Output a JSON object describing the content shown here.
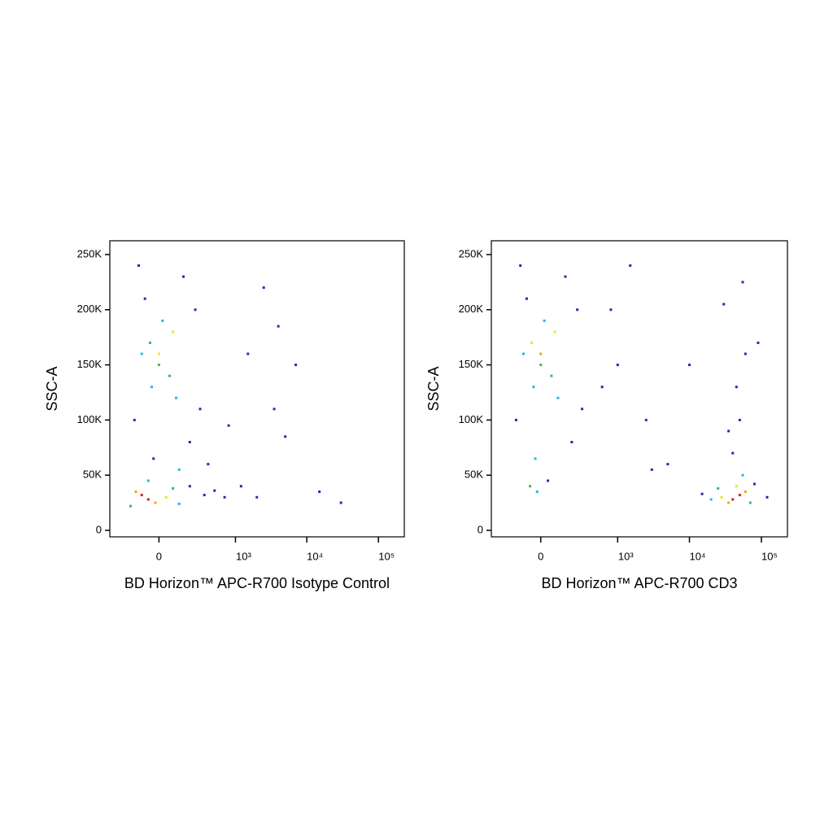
{
  "chart_data": [
    {
      "type": "scatter",
      "x_label": "BD Horizon™ APC-R700  Isotype Control",
      "y_label": "SSC-A",
      "x_scale": "asinh",
      "x_scale_width": 172,
      "xlim": [
        -400,
        230000
      ],
      "ylim": [
        -5900,
        262500
      ],
      "xticks": [
        0,
        {
          "value": 1000,
          "label": "10³"
        },
        {
          "value": 10000,
          "label": "10⁴"
        },
        {
          "value": 100000,
          "label": "10⁵"
        }
      ],
      "yticks": [
        0,
        {
          "value": 50000,
          "label": "50K"
        },
        {
          "value": 100000,
          "label": "100K"
        },
        {
          "value": 150000,
          "label": "150K"
        },
        {
          "value": 200000,
          "label": "200K"
        },
        {
          "value": 250000,
          "label": "250K"
        }
      ],
      "x": [
        -60,
        -100,
        -20,
        -140,
        40,
        -180,
        80,
        -60,
        120,
        200,
        350,
        500,
        700,
        0,
        -50,
        60,
        20,
        -100,
        100,
        -80,
        150,
        -150,
        200,
        -30,
        80,
        0,
        -40,
        250,
        -120,
        300,
        400,
        120,
        1200,
        2000,
        3500,
        4000,
        2500,
        7000,
        5000,
        15000,
        30000,
        1500,
        800
      ],
      "y": [
        28000,
        32000,
        25000,
        35000,
        30000,
        22000,
        38000,
        45000,
        24000,
        40000,
        32000,
        36000,
        30000,
        150000,
        170000,
        140000,
        190000,
        160000,
        120000,
        210000,
        230000,
        100000,
        80000,
        65000,
        180000,
        160000,
        130000,
        200000,
        240000,
        110000,
        60000,
        55000,
        40000,
        30000,
        110000,
        185000,
        220000,
        150000,
        85000,
        35000,
        25000,
        160000,
        95000
      ],
      "colors": [
        "#e8141c",
        "#e8141c",
        "#f7a21b",
        "#f7a21b",
        "#e9e817",
        "#3cba54",
        "#3cba54",
        "#18c0d8",
        "#18c0d8",
        "#1a2fb0",
        "#1a2fb0",
        "#1a2fb0",
        "#1a2fb0",
        "#3cba54",
        "#3cba54",
        "#3cba54",
        "#18c0d8",
        "#18c0d8",
        "#18c0d8",
        "#1a2fb0",
        "#1a2fb0",
        "#1a2fb0",
        "#1a2fb0",
        "#1a2fb0",
        "#e9e817",
        "#e9e817",
        "#18c0d8",
        "#1a2fb0",
        "#1a2fb0",
        "#1a2fb0",
        "#1a2fb0",
        "#18c0d8",
        "#1a2fb0",
        "#1a2fb0",
        "#1a2fb0",
        "#1a2fb0",
        "#1a2fb0",
        "#1a2fb0",
        "#1a2fb0",
        "#1a2fb0",
        "#1a2fb0",
        "#1a2fb0",
        "#1a2fb0"
      ]
    },
    {
      "type": "scatter",
      "x_label": "BD Horizon™ APC-R700  CD3",
      "y_label": "SSC-A",
      "x_scale": "asinh",
      "x_scale_width": 172,
      "xlim": [
        -400,
        230000
      ],
      "ylim": [
        -5900,
        262500
      ],
      "xticks": [
        0,
        {
          "value": 1000,
          "label": "10³"
        },
        {
          "value": 10000,
          "label": "10⁴"
        },
        {
          "value": 100000,
          "label": "10⁵"
        }
      ],
      "yticks": [
        0,
        {
          "value": 50000,
          "label": "50K"
        },
        {
          "value": 100000,
          "label": "100K"
        },
        {
          "value": 150000,
          "label": "150K"
        },
        {
          "value": 200000,
          "label": "200K"
        },
        {
          "value": 250000,
          "label": "250K"
        }
      ],
      "x": [
        0,
        -50,
        60,
        20,
        -100,
        100,
        -80,
        150,
        -150,
        200,
        -30,
        80,
        0,
        -40,
        250,
        -120,
        300,
        -60,
        -20,
        40,
        40000,
        50000,
        35000,
        60000,
        28000,
        45000,
        70000,
        25000,
        55000,
        20000,
        80000,
        15000,
        40000,
        50000,
        45000,
        60000,
        35000,
        30000,
        55000,
        10000,
        120000,
        90000,
        1500,
        800,
        2500,
        1000,
        3000,
        5000,
        600
      ],
      "y": [
        150000,
        170000,
        140000,
        190000,
        160000,
        120000,
        210000,
        230000,
        100000,
        80000,
        65000,
        180000,
        160000,
        130000,
        200000,
        240000,
        110000,
        40000,
        35000,
        45000,
        28000,
        32000,
        25000,
        35000,
        30000,
        40000,
        25000,
        38000,
        50000,
        28000,
        42000,
        33000,
        70000,
        100000,
        130000,
        160000,
        90000,
        205000,
        225000,
        150000,
        30000,
        170000,
        240000,
        200000,
        100000,
        150000,
        55000,
        60000,
        130000
      ],
      "colors": [
        "#3cba54",
        "#e9e817",
        "#3cba54",
        "#18c0d8",
        "#18c0d8",
        "#18c0d8",
        "#1a2fb0",
        "#1a2fb0",
        "#1a2fb0",
        "#1a2fb0",
        "#18c0d8",
        "#e9e817",
        "#f7a21b",
        "#18c0d8",
        "#1a2fb0",
        "#1a2fb0",
        "#1a2fb0",
        "#3cba54",
        "#18c0d8",
        "#1a2fb0",
        "#e8141c",
        "#e8141c",
        "#f7a21b",
        "#f7a21b",
        "#e9e817",
        "#e9e817",
        "#3cba54",
        "#3cba54",
        "#18c0d8",
        "#18c0d8",
        "#1a2fb0",
        "#1a2fb0",
        "#1a2fb0",
        "#1a2fb0",
        "#1a2fb0",
        "#1a2fb0",
        "#1a2fb0",
        "#1a2fb0",
        "#1a2fb0",
        "#1a2fb0",
        "#1a2fb0",
        "#1a2fb0",
        "#1a2fb0",
        "#1a2fb0",
        "#1a2fb0",
        "#1a2fb0",
        "#1a2fb0",
        "#1a2fb0",
        "#1a2fb0"
      ]
    }
  ]
}
